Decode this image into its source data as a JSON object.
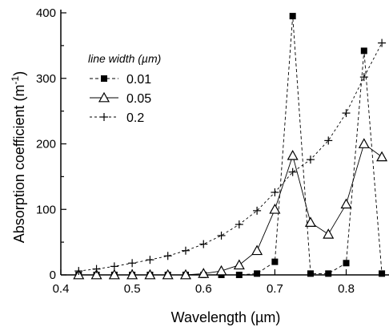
{
  "chart_data": {
    "type": "line",
    "xlabel": "Wavelength (µm)",
    "ylabel": "Absorption coefficient (m",
    "ylabel_sup": "-1",
    "ylabel_close": ")",
    "xlim": [
      0.4,
      0.86
    ],
    "ylim": [
      0,
      400
    ],
    "xticks": [
      "0.4",
      "0.5",
      "0.6",
      "0.7",
      "0.8"
    ],
    "yticks": [
      "0",
      "100",
      "200",
      "300",
      "400"
    ],
    "grid": false,
    "legend": {
      "title": "line width (µm)",
      "position": "top-left"
    },
    "series": [
      {
        "name": "0.01",
        "marker": "filled-square",
        "x": [
          0.425,
          0.45,
          0.475,
          0.5,
          0.525,
          0.55,
          0.575,
          0.6,
          0.625,
          0.65,
          0.675,
          0.7,
          0.725,
          0.75,
          0.775,
          0.8,
          0.825,
          0.85
        ],
        "y": [
          0,
          0,
          0,
          0,
          0,
          0,
          0,
          0,
          0,
          0,
          2,
          20,
          395,
          2,
          2,
          18,
          342,
          2
        ]
      },
      {
        "name": "0.05",
        "marker": "open-triangle",
        "x": [
          0.425,
          0.45,
          0.475,
          0.5,
          0.525,
          0.55,
          0.575,
          0.6,
          0.625,
          0.65,
          0.675,
          0.7,
          0.725,
          0.75,
          0.775,
          0.8,
          0.825,
          0.85
        ],
        "y": [
          0,
          0,
          0,
          0,
          0,
          0,
          0,
          2,
          6,
          15,
          37,
          100,
          182,
          80,
          62,
          108,
          200,
          180
        ]
      },
      {
        "name": "0.2",
        "marker": "plus",
        "x": [
          0.425,
          0.45,
          0.475,
          0.5,
          0.525,
          0.55,
          0.575,
          0.6,
          0.625,
          0.65,
          0.675,
          0.7,
          0.725,
          0.75,
          0.775,
          0.8,
          0.825,
          0.85
        ],
        "y": [
          6,
          9,
          13,
          18,
          23,
          29,
          37,
          47,
          60,
          77,
          98,
          126,
          157,
          176,
          205,
          247,
          302,
          354
        ]
      }
    ]
  }
}
